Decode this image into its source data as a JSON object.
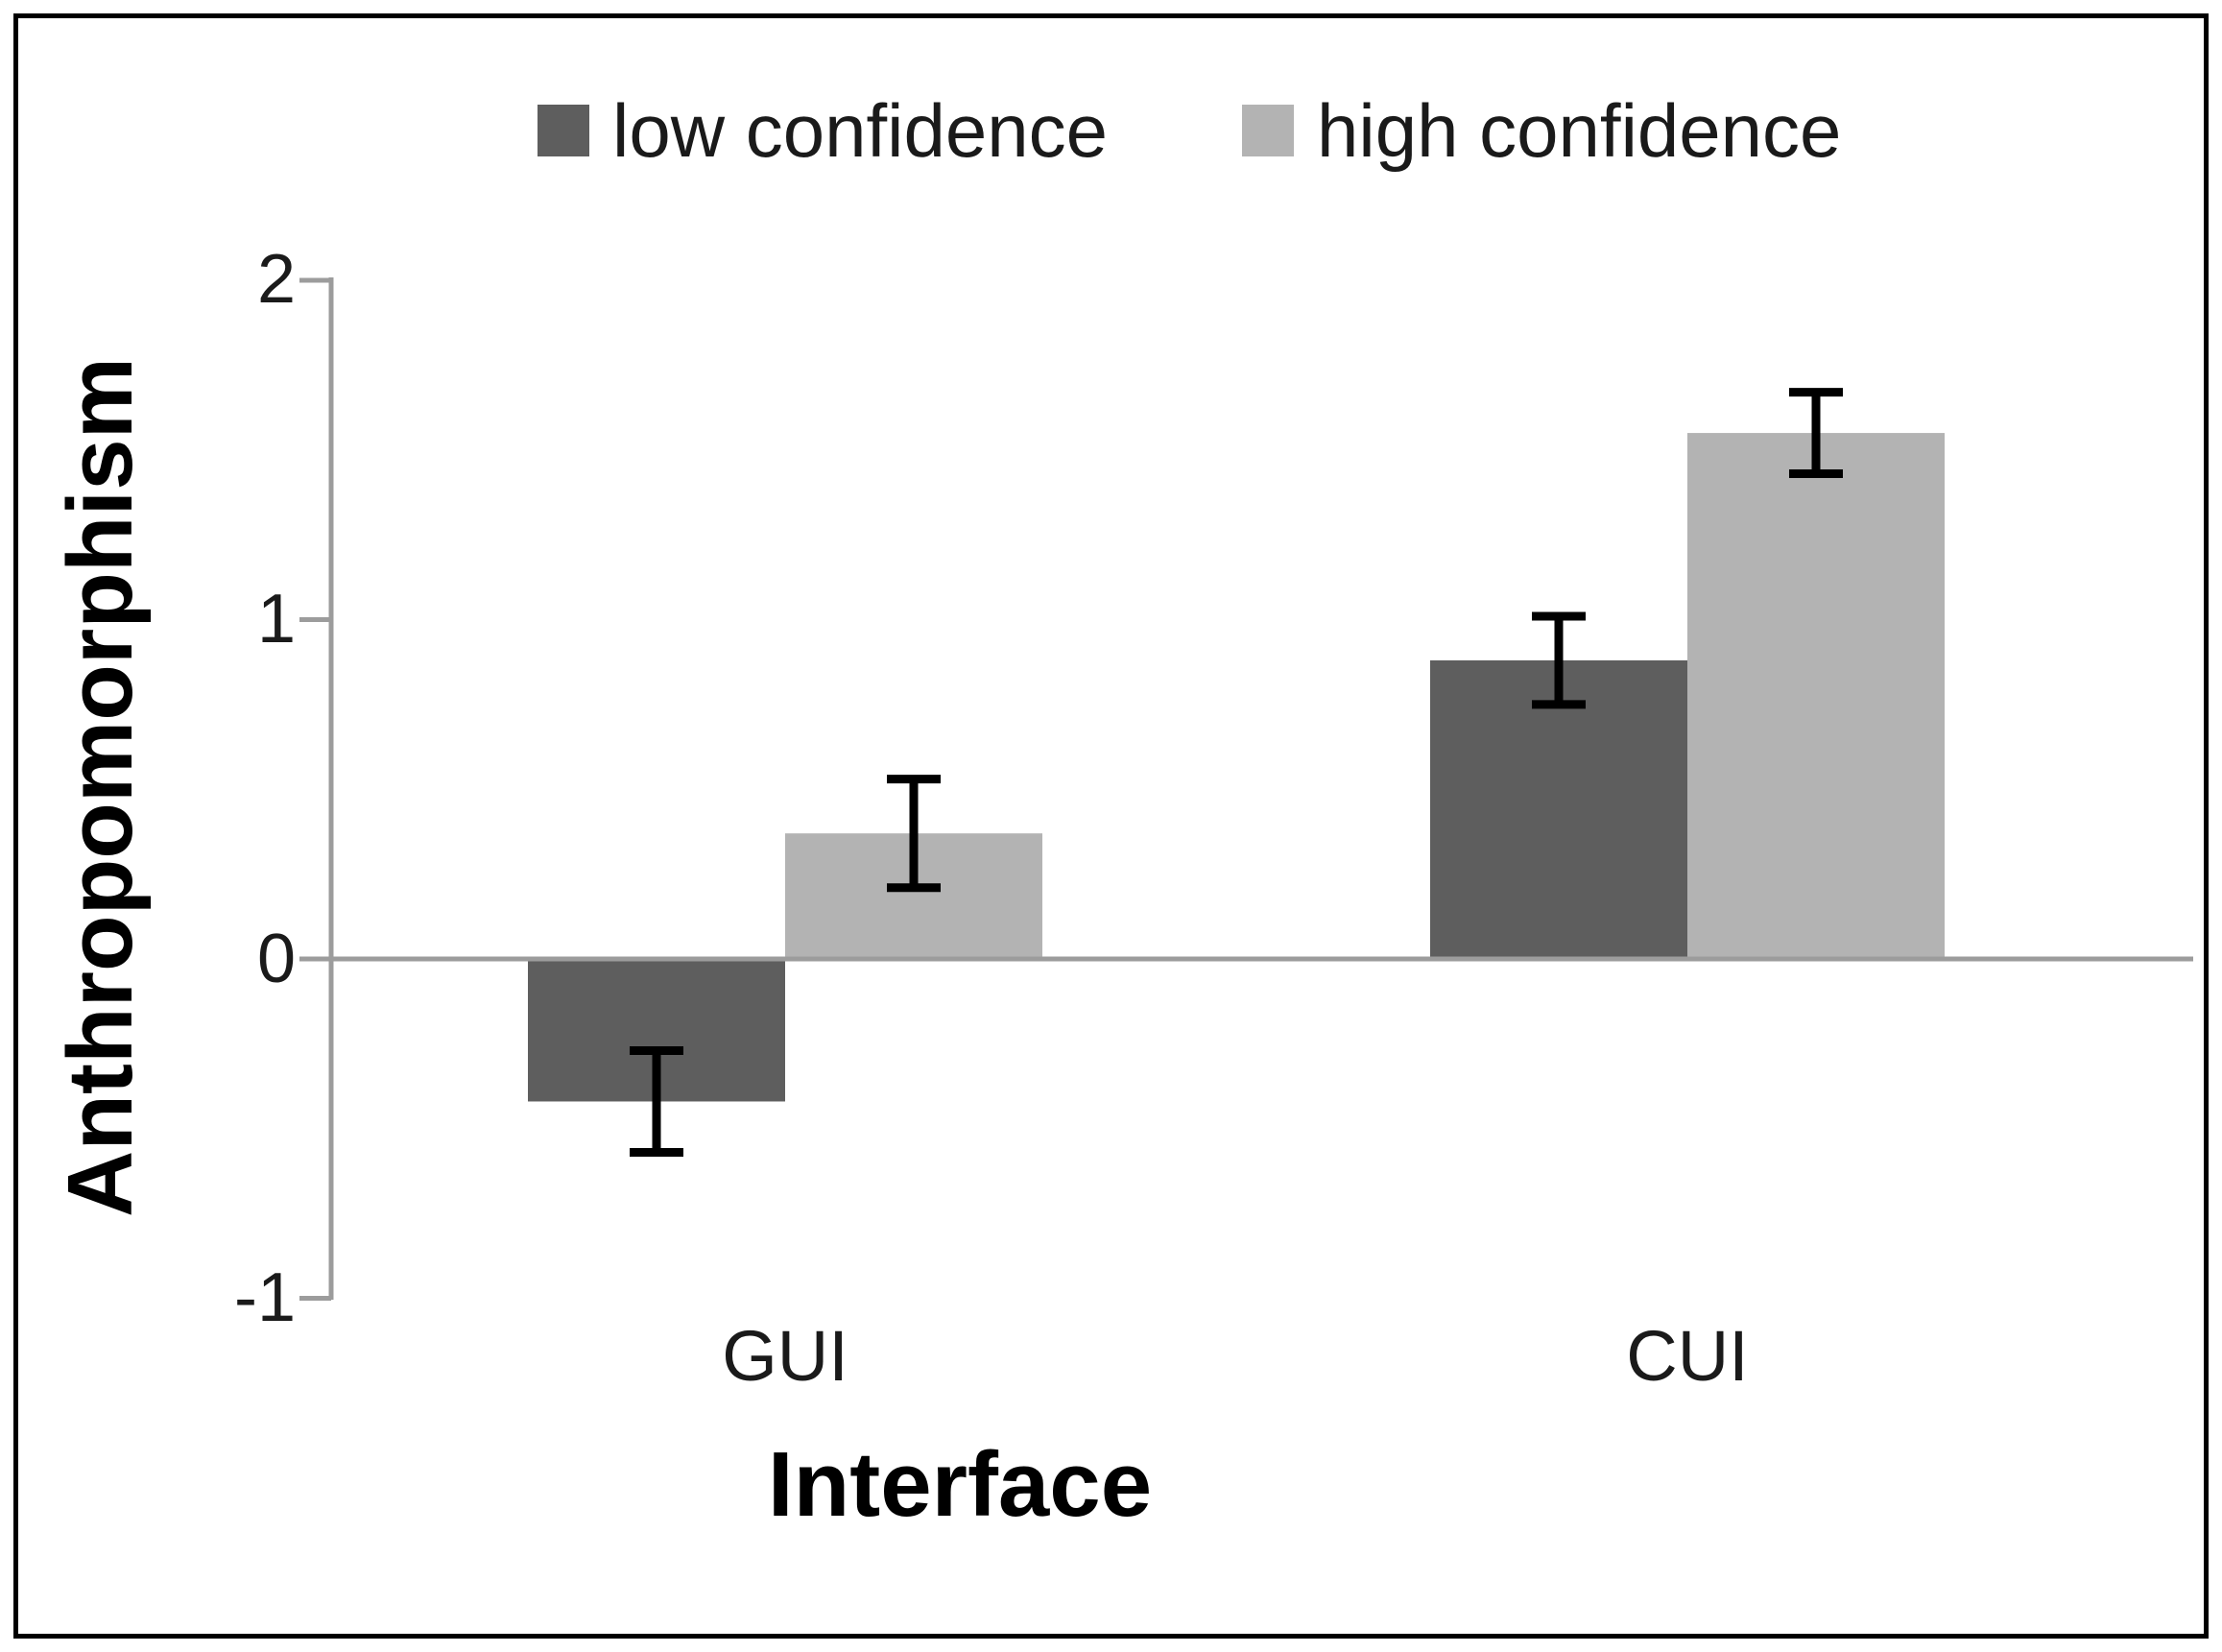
{
  "chart_data": {
    "type": "bar",
    "title": "",
    "categories": [
      "GUI",
      "CUI"
    ],
    "series": [
      {
        "name": "low confidence",
        "color": "#5E5E5E",
        "values": [
          -0.42,
          0.88
        ],
        "errors": [
          0.15,
          0.13
        ]
      },
      {
        "name": "high confidence",
        "color": "#B3B3B3",
        "values": [
          0.37,
          1.55
        ],
        "errors": [
          0.16,
          0.12
        ]
      }
    ],
    "xlabel": "Interface",
    "ylabel": "Anthropomorphism",
    "ylim": [
      -1,
      2
    ],
    "yticks": [
      2,
      1,
      0,
      -1
    ],
    "grid": false,
    "error_bars": true,
    "legend_position": "top",
    "axis_color": "#9C9C9C",
    "error_bar_color": "#000000"
  },
  "axes": {
    "ytick_labels": [
      "2",
      "1",
      "0",
      "-1"
    ]
  },
  "legend": {
    "items": [
      {
        "label": "low confidence",
        "color": "#5E5E5E"
      },
      {
        "label": "high confidence",
        "color": "#B3B3B3"
      }
    ]
  }
}
